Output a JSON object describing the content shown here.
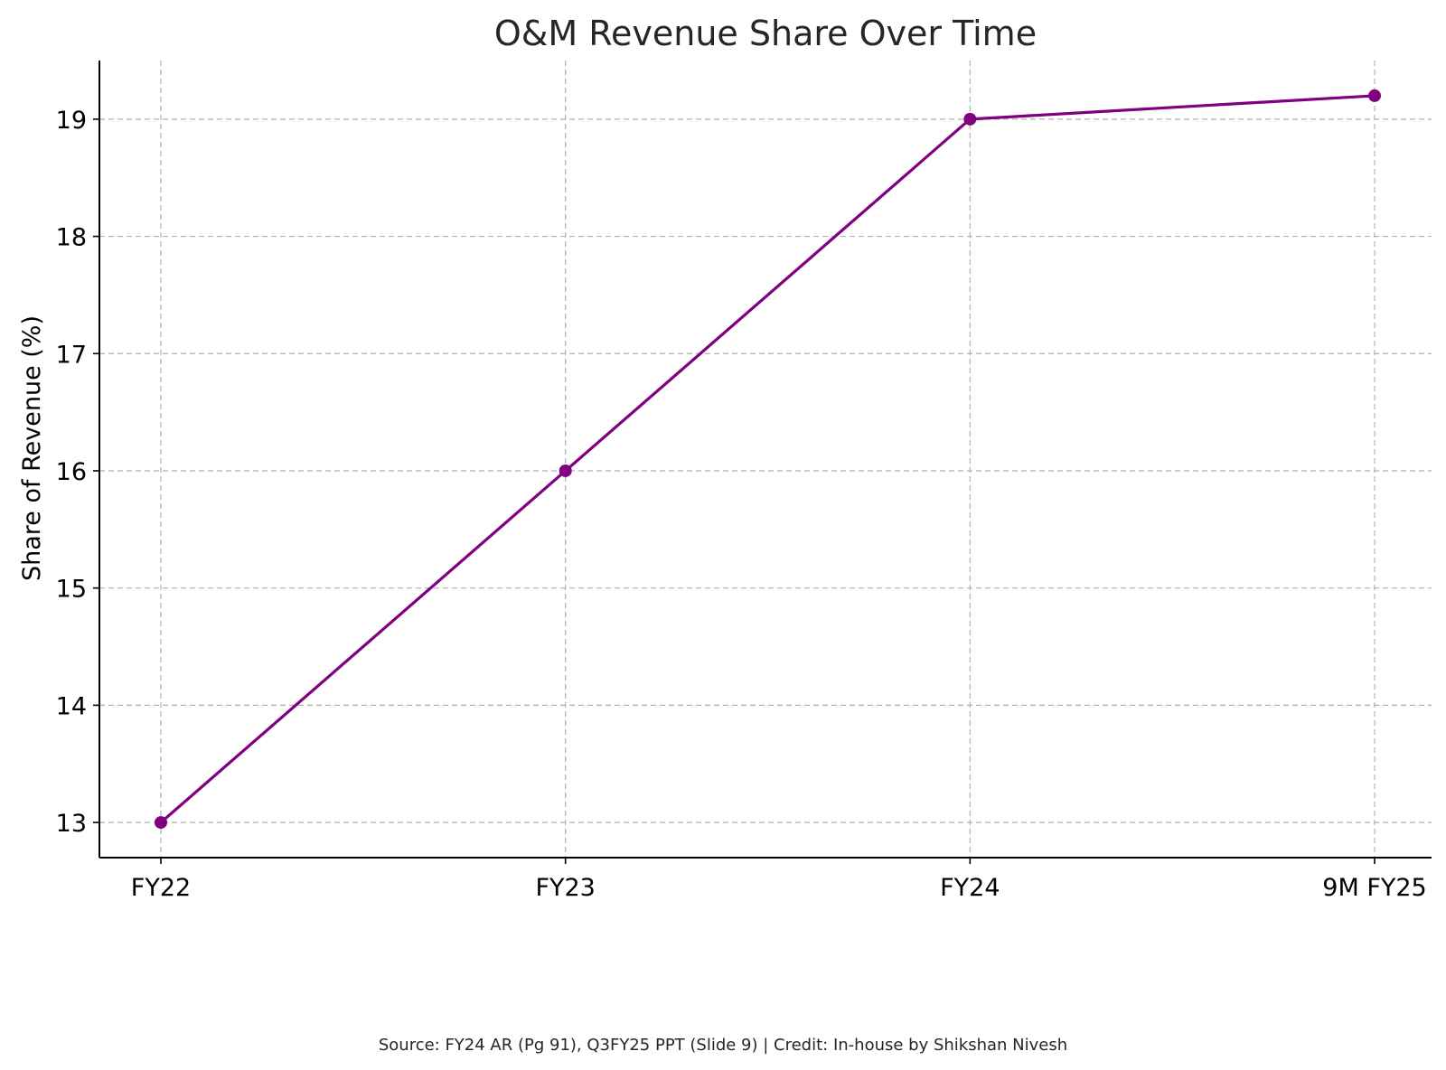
{
  "chart_data": {
    "type": "line",
    "title": "O&M Revenue Share Over Time",
    "xlabel": "",
    "ylabel": "Share of Revenue (%)",
    "categories": [
      "FY22",
      "FY23",
      "FY24",
      "9M FY25"
    ],
    "series": [
      {
        "values": [
          13,
          16,
          19,
          19.2
        ],
        "color": "#800080",
        "marker": "circle"
      }
    ],
    "ylim": [
      12.7,
      19.5
    ],
    "yticks": [
      13,
      14,
      15,
      16,
      17,
      18,
      19
    ],
    "grid": true,
    "grid_style": "dashed",
    "legend": "none"
  },
  "footer": {
    "source": "Source: FY24 AR (Pg 91), Q3FY25 PPT (Slide 9) | Credit: In-house by Shikshan Nivesh"
  }
}
